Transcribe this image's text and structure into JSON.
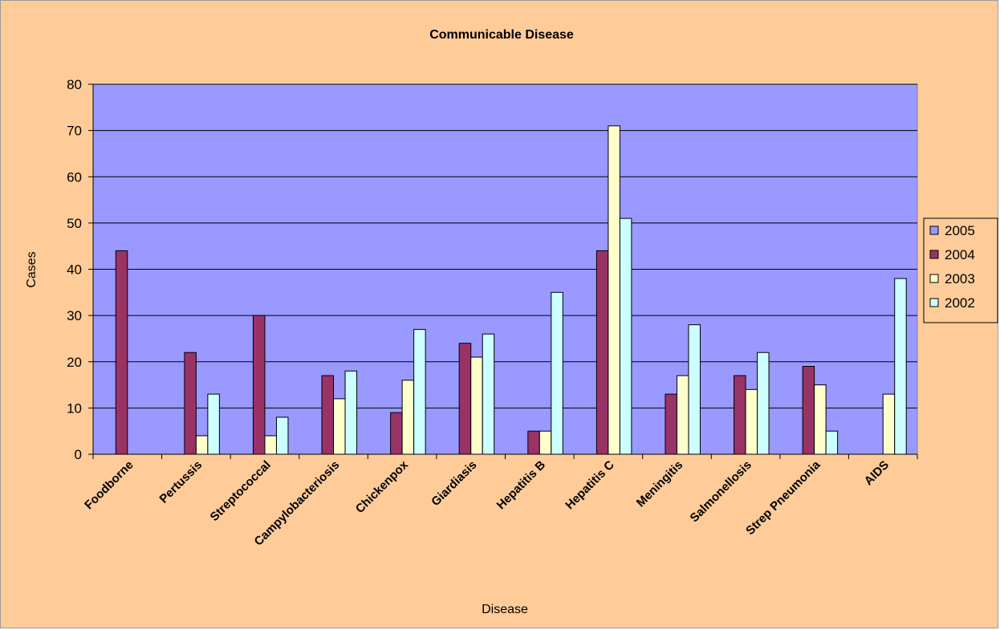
{
  "chart_data": {
    "type": "bar",
    "title": "Communicable Disease",
    "xlabel": "Disease",
    "ylabel": "Cases",
    "ylim": [
      0,
      80
    ],
    "yticks": [
      "0",
      "10",
      "20",
      "30",
      "40",
      "50",
      "60",
      "70",
      "80"
    ],
    "grid": true,
    "legend_position": "right",
    "categories": [
      "Foodborne",
      "Pertussis",
      "Streptococcal",
      "Campylobacteriosis",
      "Chickenpox",
      "Giardiasis",
      "Hepatitis B",
      "Hepatitis C",
      "Meningitis",
      "Salmonellosis",
      "Strep Pneumonia",
      "AIDS"
    ],
    "series": [
      {
        "name": "2005",
        "color": "#9999ff",
        "values": [
          0,
          0,
          0,
          0,
          0,
          0,
          0,
          0,
          0,
          0,
          0,
          0
        ]
      },
      {
        "name": "2004",
        "color": "#993366",
        "values": [
          44,
          22,
          30,
          17,
          9,
          24,
          5,
          44,
          13,
          17,
          19,
          0
        ]
      },
      {
        "name": "2003",
        "color": "#ffffcc",
        "values": [
          0,
          4,
          4,
          12,
          16,
          21,
          5,
          71,
          17,
          14,
          15,
          13
        ]
      },
      {
        "name": "2002",
        "color": "#ccffff",
        "values": [
          0,
          13,
          8,
          18,
          27,
          26,
          35,
          51,
          28,
          22,
          5,
          38
        ]
      }
    ],
    "plot_background": "#9999ff",
    "chart_background": "#ffcc99"
  }
}
